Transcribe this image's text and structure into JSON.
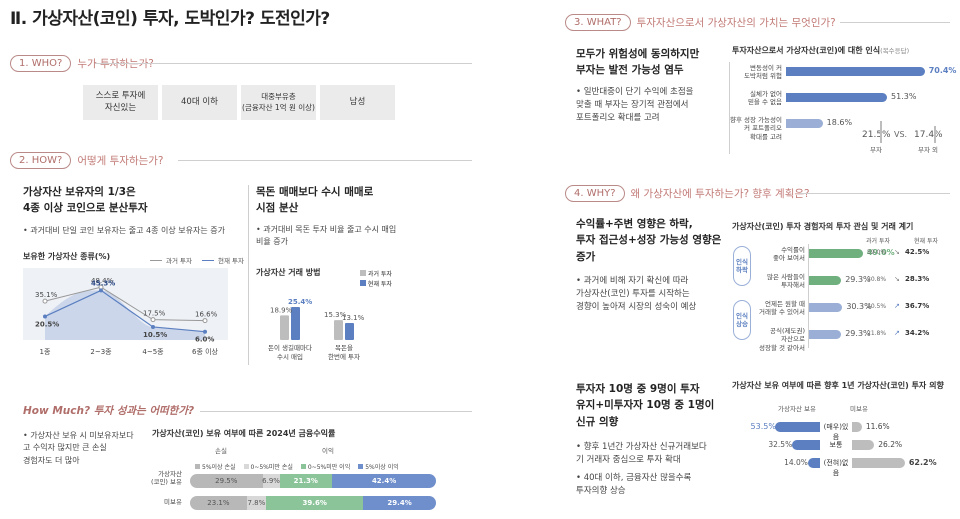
{
  "page_title": "Ⅱ. 가상자산(코인) 투자, 도박인가? 도전인가?",
  "colors": {
    "accent": "#b06e6a",
    "blue": "#5b7fc0",
    "green": "#6fb07e",
    "gray": "#bdbdbd",
    "light_gray": "#ebebeb"
  },
  "who": {
    "tag": "1. WHO?",
    "question": "누가 투자하는가?",
    "boxes": [
      "스스로 투자에\n자신있는",
      "40대 이하",
      "대중부유층\n(금융자산 1억 원 이상)",
      "남성"
    ]
  },
  "how": {
    "tag": "2. HOW?",
    "question": "어떻게 투자하는가?",
    "left_head": "가상자산 보유자의 1/3은\n4종 이상 코인으로 분산투자",
    "left_bullet": "• 과거대비 단일 코인 보유자는 줄고 4종 이상 보유자는 증가",
    "chart1": {
      "title": "보유한 가상자산 종류(%)",
      "legend_past": "과거 투자",
      "legend_now": "현재 투자",
      "categories": [
        "1종",
        "2~3종",
        "4~5종",
        "6종 이상"
      ],
      "past": [
        35.1,
        48.4,
        17.5,
        16.6
      ],
      "now": [
        20.5,
        45.3,
        10.5,
        6.0
      ],
      "past_labels": [
        "35.1%",
        "48.4%",
        "17.5%",
        "16.6%"
      ],
      "now_labels": [
        "20.5%",
        "45.3%",
        "10.5%",
        "6.0%"
      ]
    },
    "right_head": "목돈 매매보다 수시 매매로\n시점 분산",
    "right_bullet": "• 과거대비 목돈 투자 비율 줄고 수시 매입\n  비율 증가",
    "chart2": {
      "title": "가상자산 거래 방법",
      "legend_past": "과거 투자",
      "legend_now": "현재 투자",
      "categories": [
        "돈이 생길때마다\n수시 매입",
        "목돈을\n한번에 투자"
      ],
      "past": [
        18.9,
        15.3
      ],
      "now": [
        25.4,
        13.1
      ],
      "past_labels": [
        "18.9%",
        "15.3%"
      ],
      "now_labels": [
        "25.4%",
        "13.1%"
      ]
    }
  },
  "howmuch": {
    "tag": "How Much? 투자 성과는 어떠한가?",
    "bullet": "• 가상자산 보유 시 미보유자보다\n  고 수익자 많지만 큰 손실\n  경험자도 더 많아",
    "chart_title": "가상자산(코인) 보유 여부에 따른 2024년 금융수익률",
    "loss": "손실",
    "profit": "이익",
    "legend": [
      "5%이상 손실",
      "0~5%미만 손실",
      "0~5%미만 이익",
      "5%이상 이익"
    ],
    "rows": [
      {
        "label": "가상자산\n(코인) 보유",
        "values": [
          29.5,
          6.9,
          21.3,
          42.4
        ],
        "labels": [
          "29.5%",
          "6.9%",
          "21.3%",
          "42.4%"
        ]
      },
      {
        "label": "미보유",
        "values": [
          23.1,
          7.8,
          39.6,
          29.4
        ],
        "labels": [
          "23.1%",
          "7.8%",
          "39.6%",
          "29.4%"
        ]
      }
    ]
  },
  "what": {
    "tag": "3. WHAT?",
    "question": "투자자산으로서 가상자산의 가치는 무엇인가?",
    "head": "모두가 위험성에 동의하지만\n부자는 발전 가능성 염두",
    "bullet": "• 일반대중이 단기 수익에 초점을\n  맞출 때 부자는 장기적 관점에서\n  포트폴리오 확대를 고려",
    "chart_title": "투자자산으로서 가상자산(코인)에 대한 인식",
    "chart_note": "(복수응답)",
    "rows": [
      {
        "label": "변동성이 커\n도박처럼 위험",
        "value": 70.4,
        "text": "70.4%"
      },
      {
        "label": "실체가 없어\n믿을 수 없음",
        "value": 51.3,
        "text": "51.3%"
      },
      {
        "label": "향후 성장 가능성이\n커 포트폴리오\n확대를 고려",
        "value": 18.6,
        "text": "18.6%"
      }
    ],
    "compare": {
      "rich": "21.5%",
      "vs": "VS.",
      "nonrich": "17.4%",
      "rich_label": "부자",
      "nonrich_label": "부자 외"
    }
  },
  "why": {
    "tag": "4. WHY?",
    "question": "왜 가상자산에 투자하는가? 향후 계획은?",
    "head1": "수익률+주변 영향은 하락,\n투자 접근성+성장 가능성 영향은\n증가",
    "bullet1": "• 과거에 비해 자기 확신에 따라\n  가상자산(코인) 투자를 시작하는\n  경향이 높아져 시장의 성숙이 예상",
    "chart1": {
      "title": "가상자산(코인) 투자 경험자의 투자 관심 및 거래 계기",
      "col_past": "과거 투자",
      "col_now": "현재 투자",
      "group1": "인식\n하락",
      "group2": "인식\n상승",
      "rows": [
        {
          "label": "수익률이\n좋아 보여서",
          "value": 49.0,
          "text": "49.0%",
          "past": "59.0%",
          "now": "42.5%"
        },
        {
          "label": "많은 사람들이\n투자해서",
          "value": 29.3,
          "text": "29.3%",
          "past": "30.8%",
          "now": "28.3%"
        },
        {
          "label": "언제든 원할 때\n거래할 수 있어서",
          "value": 30.3,
          "text": "30.3%",
          "past": "20.5%",
          "now": "36.7%"
        },
        {
          "label": "공식(제도권)\n자산으로\n성장할 것 같아서",
          "value": 29.3,
          "text": "29.3%",
          "past": "21.8%",
          "now": "34.2%"
        }
      ]
    },
    "head2": "투자자 10명 중 9명이 투자\n유지+미투자자 10명 중 1명이\n신규 의향",
    "bullet2": "• 향후 1년간 가상자산 신규거래보다\n  기 거래자 중심으로 투자 확대",
    "bullet3": "• 40대 이하, 금융자산 많을수록\n  투자의향 상승",
    "chart2": {
      "title": "가상자산 보유 여부에 따른 향후 1년 가상자산(코인) 투자 의향",
      "col_hold": "가상자산 보유",
      "col_nohold": "미보유",
      "rows": [
        {
          "label": "(매우)있음",
          "hold": 53.5,
          "hold_text": "53.5%",
          "nohold": 11.6,
          "nohold_text": "11.6%"
        },
        {
          "label": "보통",
          "hold": 32.5,
          "hold_text": "32.5%",
          "nohold": 26.2,
          "nohold_text": "26.2%"
        },
        {
          "label": "(전혀)없음",
          "hold": 14.0,
          "hold_text": "14.0%",
          "nohold": 62.2,
          "nohold_text": "62.2%"
        }
      ]
    }
  }
}
